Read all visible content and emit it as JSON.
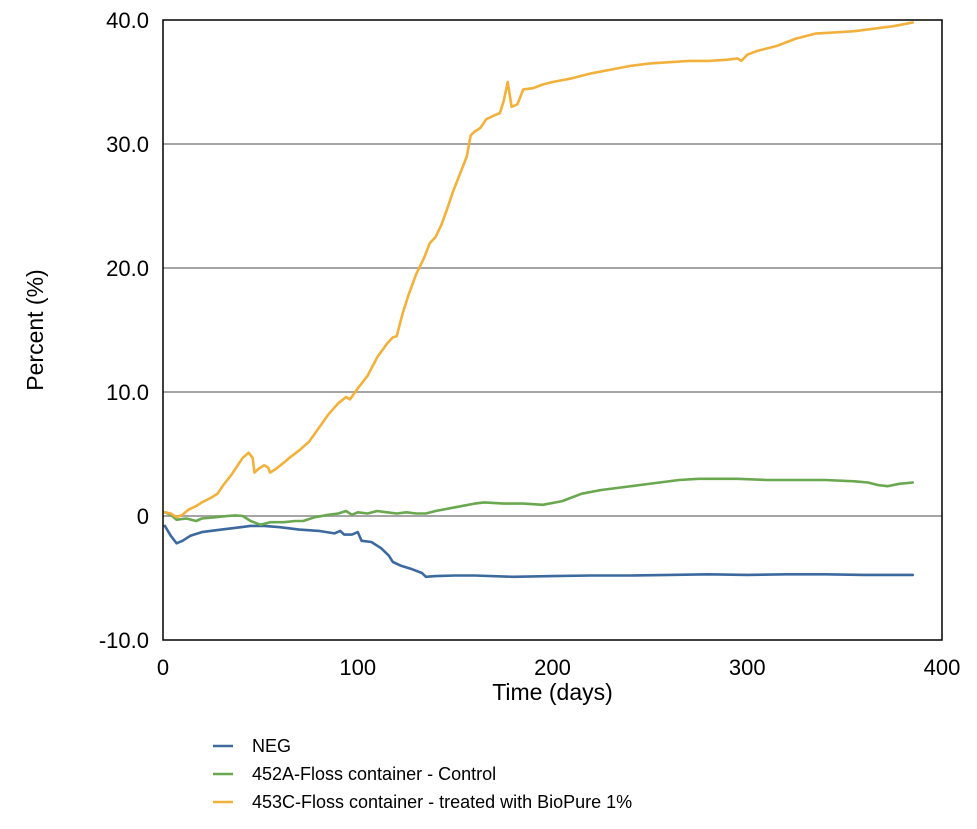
{
  "chart_data": {
    "type": "line",
    "title": "",
    "xlabel": "Time (days)",
    "ylabel": "Percent (%)",
    "xlim": [
      0,
      400
    ],
    "ylim": [
      -10,
      40
    ],
    "x_ticks": [
      0,
      100,
      200,
      300,
      400
    ],
    "x_tick_labels": [
      "0",
      "100",
      "200",
      "300",
      "400"
    ],
    "y_ticks": [
      -10,
      0,
      10,
      20,
      30,
      40
    ],
    "y_tick_labels": [
      "-10.0",
      "0",
      "10.0",
      "20.0",
      "30.0",
      "40.0"
    ],
    "grid": "horizontal",
    "legend_position": "bottom",
    "series": [
      {
        "name": "NEG",
        "color": "#3d6a9e",
        "points": [
          [
            1,
            -0.8
          ],
          [
            4,
            -1.6
          ],
          [
            7,
            -2.2
          ],
          [
            10,
            -2.0
          ],
          [
            14,
            -1.6
          ],
          [
            20,
            -1.3
          ],
          [
            30,
            -1.1
          ],
          [
            40,
            -0.9
          ],
          [
            45,
            -0.8
          ],
          [
            52,
            -0.8
          ],
          [
            60,
            -0.9
          ],
          [
            70,
            -1.1
          ],
          [
            80,
            -1.2
          ],
          [
            88,
            -1.4
          ],
          [
            91,
            -1.2
          ],
          [
            93,
            -1.5
          ],
          [
            97,
            -1.5
          ],
          [
            100,
            -1.3
          ],
          [
            102,
            -2.0
          ],
          [
            107,
            -2.1
          ],
          [
            112,
            -2.6
          ],
          [
            116,
            -3.2
          ],
          [
            118,
            -3.7
          ],
          [
            122,
            -4.0
          ],
          [
            128,
            -4.3
          ],
          [
            133,
            -4.6
          ],
          [
            135,
            -4.9
          ],
          [
            140,
            -4.85
          ],
          [
            150,
            -4.8
          ],
          [
            160,
            -4.8
          ],
          [
            180,
            -4.9
          ],
          [
            200,
            -4.85
          ],
          [
            220,
            -4.8
          ],
          [
            240,
            -4.8
          ],
          [
            260,
            -4.75
          ],
          [
            280,
            -4.7
          ],
          [
            300,
            -4.75
          ],
          [
            320,
            -4.7
          ],
          [
            340,
            -4.7
          ],
          [
            360,
            -4.75
          ],
          [
            385,
            -4.75
          ]
        ]
      },
      {
        "name": "452A-Floss container - Control",
        "color": "#6aa84f",
        "points": [
          [
            1,
            0.3
          ],
          [
            4,
            0.1
          ],
          [
            7,
            -0.3
          ],
          [
            12,
            -0.2
          ],
          [
            17,
            -0.4
          ],
          [
            20,
            -0.2
          ],
          [
            27,
            -0.1
          ],
          [
            33,
            0
          ],
          [
            37,
            0.05
          ],
          [
            41,
            0
          ],
          [
            45,
            -0.4
          ],
          [
            50,
            -0.7
          ],
          [
            55,
            -0.5
          ],
          [
            62,
            -0.5
          ],
          [
            68,
            -0.4
          ],
          [
            72,
            -0.4
          ],
          [
            78,
            -0.1
          ],
          [
            85,
            0.1
          ],
          [
            90,
            0.2
          ],
          [
            94,
            0.4
          ],
          [
            97,
            0.1
          ],
          [
            100,
            0.3
          ],
          [
            105,
            0.2
          ],
          [
            110,
            0.4
          ],
          [
            115,
            0.3
          ],
          [
            120,
            0.2
          ],
          [
            125,
            0.3
          ],
          [
            130,
            0.2
          ],
          [
            135,
            0.2
          ],
          [
            140,
            0.4
          ],
          [
            150,
            0.7
          ],
          [
            160,
            1.0
          ],
          [
            165,
            1.1
          ],
          [
            175,
            1.0
          ],
          [
            185,
            1.0
          ],
          [
            195,
            0.9
          ],
          [
            205,
            1.2
          ],
          [
            210,
            1.5
          ],
          [
            215,
            1.8
          ],
          [
            225,
            2.1
          ],
          [
            235,
            2.3
          ],
          [
            245,
            2.5
          ],
          [
            255,
            2.7
          ],
          [
            265,
            2.9
          ],
          [
            275,
            3.0
          ],
          [
            285,
            3.0
          ],
          [
            295,
            3.0
          ],
          [
            310,
            2.9
          ],
          [
            325,
            2.9
          ],
          [
            340,
            2.9
          ],
          [
            355,
            2.8
          ],
          [
            362,
            2.7
          ],
          [
            367,
            2.5
          ],
          [
            372,
            2.4
          ],
          [
            378,
            2.6
          ],
          [
            385,
            2.7
          ]
        ]
      },
      {
        "name": "453C-Floss container - treated with BioPure 1%",
        "color": "#f2b13c",
        "points": [
          [
            1,
            0.3
          ],
          [
            4,
            0.2
          ],
          [
            7,
            -0.1
          ],
          [
            10,
            0.1
          ],
          [
            13,
            0.5
          ],
          [
            17,
            0.8
          ],
          [
            20,
            1.1
          ],
          [
            25,
            1.5
          ],
          [
            28,
            1.8
          ],
          [
            31,
            2.5
          ],
          [
            35,
            3.3
          ],
          [
            38,
            4.0
          ],
          [
            41,
            4.7
          ],
          [
            44,
            5.1
          ],
          [
            46,
            4.7
          ],
          [
            47,
            3.5
          ],
          [
            49,
            3.8
          ],
          [
            52,
            4.1
          ],
          [
            54,
            3.9
          ],
          [
            55,
            3.5
          ],
          [
            58,
            3.8
          ],
          [
            62,
            4.3
          ],
          [
            65,
            4.7
          ],
          [
            70,
            5.3
          ],
          [
            75,
            6.0
          ],
          [
            80,
            7.1
          ],
          [
            85,
            8.2
          ],
          [
            90,
            9.1
          ],
          [
            94,
            9.6
          ],
          [
            96,
            9.4
          ],
          [
            100,
            10.3
          ],
          [
            105,
            11.3
          ],
          [
            110,
            12.8
          ],
          [
            115,
            13.9
          ],
          [
            118,
            14.4
          ],
          [
            120,
            14.5
          ],
          [
            123,
            16.3
          ],
          [
            126,
            17.8
          ],
          [
            130,
            19.5
          ],
          [
            134,
            20.8
          ],
          [
            137,
            22.0
          ],
          [
            140,
            22.5
          ],
          [
            143,
            23.5
          ],
          [
            146,
            24.8
          ],
          [
            149,
            26.2
          ],
          [
            153,
            27.8
          ],
          [
            156,
            29.0
          ],
          [
            158,
            30.7
          ],
          [
            160,
            31.0
          ],
          [
            163,
            31.3
          ],
          [
            166,
            32.0
          ],
          [
            170,
            32.3
          ],
          [
            173,
            32.5
          ],
          [
            175,
            33.5
          ],
          [
            177,
            35.0
          ],
          [
            179,
            33.0
          ],
          [
            182,
            33.2
          ],
          [
            185,
            34.4
          ],
          [
            190,
            34.5
          ],
          [
            195,
            34.8
          ],
          [
            200,
            35.0
          ],
          [
            210,
            35.3
          ],
          [
            220,
            35.7
          ],
          [
            230,
            36.0
          ],
          [
            240,
            36.3
          ],
          [
            250,
            36.5
          ],
          [
            260,
            36.6
          ],
          [
            270,
            36.7
          ],
          [
            280,
            36.7
          ],
          [
            290,
            36.8
          ],
          [
            295,
            36.9
          ],
          [
            297,
            36.7
          ],
          [
            300,
            37.2
          ],
          [
            305,
            37.5
          ],
          [
            315,
            37.9
          ],
          [
            325,
            38.5
          ],
          [
            335,
            38.9
          ],
          [
            345,
            39.0
          ],
          [
            355,
            39.1
          ],
          [
            365,
            39.3
          ],
          [
            375,
            39.5
          ],
          [
            385,
            39.8
          ]
        ]
      }
    ]
  }
}
